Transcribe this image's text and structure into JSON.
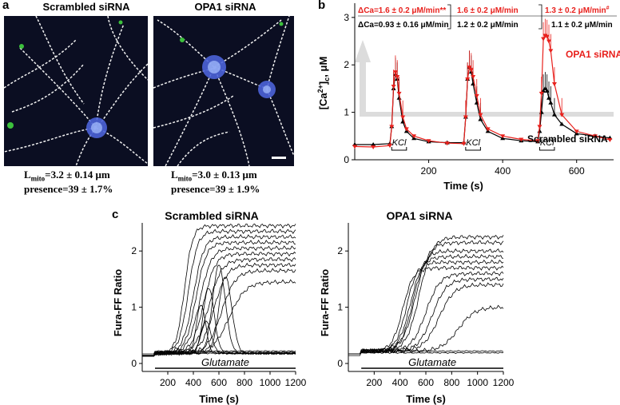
{
  "panel_a": {
    "letter": "a",
    "left_title": "Scrambled siRNA",
    "right_title": "OPA1 siRNA",
    "left_caption": [
      "L",
      "mito",
      "=3.2 ± 0.14 μm"
    ],
    "left_presence": "presence=39 ± 1.7%",
    "right_caption": [
      "L",
      "mito",
      "=3.0 ± 0.13 μm"
    ],
    "right_presence": "presence=39 ± 1.9%",
    "colors": {
      "background": "#0b0e22",
      "mito": "#f2f2f2",
      "nucleus": "#4b63d8",
      "green": "#3cc13c"
    }
  },
  "panel_b": {
    "letter": "b",
    "annot_red_1": "ΔCa=1.6 ± 0.2 μM/min**",
    "annot_red_2": "1.6 ± 0.2 μM/min",
    "annot_red_3": "1.3 ± 0.2 μM/min",
    "annot_red_3_sup": "#",
    "annot_black_1": "ΔCa=0.93 ± 0.16 μM/min",
    "annot_black_2": "1.2 ± 0.2 μM/min",
    "annot_black_3": "1.1 ± 0.2 μM/min",
    "series_red_label": "OPA1 siRNA",
    "series_black_label": "Scrambled siRNA",
    "kcl_label": "KCl",
    "colors": {
      "red": "#e8201c",
      "black": "#000000"
    }
  },
  "panel_c": {
    "letter": "c",
    "left_title": "Scrambled siRNA",
    "right_title": "OPA1 siRNA",
    "bar_label": "Glutamate"
  },
  "chart_data": [
    {
      "type": "line",
      "panel": "b",
      "xlabel": "Time (s)",
      "ylabel": "[Ca2+]c, μM",
      "ylabel_parts": [
        "[Ca",
        "2+",
        "]",
        "c",
        ", μM"
      ],
      "xlim": [
        0,
        700
      ],
      "ylim": [
        0,
        3.3
      ],
      "xticks": [
        200,
        400,
        600
      ],
      "yticks": [
        0,
        1,
        2,
        3
      ],
      "stimuli": [
        {
          "label": "KCl",
          "start": 100,
          "end": 140
        },
        {
          "label": "KCl",
          "start": 300,
          "end": 340
        },
        {
          "label": "KCl",
          "start": 500,
          "end": 540
        }
      ],
      "series": [
        {
          "name": "Scrambled siRNA",
          "color": "#000000",
          "x": [
            0,
            50,
            95,
            100,
            105,
            110,
            115,
            120,
            130,
            140,
            160,
            200,
            250,
            295,
            300,
            305,
            310,
            315,
            320,
            330,
            340,
            360,
            400,
            450,
            495,
            500,
            505,
            510,
            515,
            520,
            525,
            530,
            540,
            560,
            600,
            650,
            690
          ],
          "y": [
            0.32,
            0.32,
            0.34,
            0.7,
            1.5,
            1.8,
            1.7,
            1.3,
            0.8,
            0.6,
            0.45,
            0.38,
            0.36,
            0.36,
            0.9,
            1.7,
            1.95,
            1.85,
            1.6,
            1.2,
            0.85,
            0.6,
            0.45,
            0.4,
            0.38,
            0.6,
            1.0,
            1.45,
            1.5,
            1.45,
            1.3,
            1.2,
            0.95,
            0.75,
            0.55,
            0.5,
            0.46
          ]
        },
        {
          "name": "OPA1 siRNA",
          "color": "#e8201c",
          "x": [
            0,
            50,
            95,
            100,
            105,
            110,
            115,
            120,
            130,
            140,
            160,
            200,
            250,
            295,
            300,
            305,
            310,
            315,
            320,
            330,
            340,
            360,
            400,
            450,
            495,
            500,
            505,
            510,
            515,
            520,
            525,
            530,
            540,
            560,
            600,
            650,
            690
          ],
          "y": [
            0.28,
            0.27,
            0.3,
            0.7,
            1.55,
            1.85,
            1.75,
            1.4,
            0.9,
            0.65,
            0.5,
            0.4,
            0.35,
            0.34,
            0.9,
            1.7,
            1.95,
            1.9,
            1.75,
            1.35,
            0.95,
            0.65,
            0.5,
            0.43,
            0.4,
            0.7,
            1.4,
            2.55,
            2.62,
            2.6,
            2.5,
            2.3,
            1.6,
            0.95,
            0.6,
            0.5,
            0.42
          ]
        }
      ]
    },
    {
      "type": "line",
      "panel": "c-left",
      "title": "Scrambled siRNA",
      "xlabel": "Time (s)",
      "ylabel": "Fura-FF Ratio",
      "xlim": [
        0,
        1200
      ],
      "ylim": [
        0,
        2.5
      ],
      "xticks": [
        200,
        400,
        600,
        800,
        1000,
        1200
      ],
      "yticks": [
        0,
        1,
        2
      ],
      "stimulus": {
        "label": "Glutamate",
        "start": 100,
        "end": 1200
      },
      "traces": [
        {
          "type": "sigmoid",
          "base": 0.18,
          "plateau": 2.45,
          "t0": 330,
          "k": 70
        },
        {
          "type": "sigmoid",
          "base": 0.18,
          "plateau": 2.35,
          "t0": 360,
          "k": 80
        },
        {
          "type": "sigmoid",
          "base": 0.18,
          "plateau": 2.25,
          "t0": 400,
          "k": 90
        },
        {
          "type": "sigmoid",
          "base": 0.18,
          "plateau": 2.15,
          "t0": 420,
          "k": 90
        },
        {
          "type": "sigmoid",
          "base": 0.18,
          "plateau": 2.05,
          "t0": 450,
          "k": 100
        },
        {
          "type": "sigmoid",
          "base": 0.18,
          "plateau": 1.95,
          "t0": 480,
          "k": 100
        },
        {
          "type": "sigmoid",
          "base": 0.18,
          "plateau": 1.85,
          "t0": 520,
          "k": 110
        },
        {
          "type": "sigmoid",
          "base": 0.18,
          "plateau": 1.75,
          "t0": 560,
          "k": 110
        },
        {
          "type": "sigmoid",
          "base": 0.18,
          "plateau": 1.65,
          "t0": 620,
          "k": 120
        },
        {
          "type": "sigmoid",
          "base": 0.18,
          "plateau": 1.45,
          "t0": 680,
          "k": 140
        },
        {
          "type": "transient",
          "base": 0.18,
          "peak": 1.75,
          "t0": 600,
          "width": 70
        },
        {
          "type": "transient",
          "base": 0.18,
          "peak": 1.55,
          "t0": 650,
          "width": 70
        },
        {
          "type": "transient",
          "base": 0.18,
          "peak": 1.35,
          "t0": 520,
          "width": 60
        },
        {
          "type": "transient",
          "base": 0.18,
          "peak": 1.05,
          "t0": 460,
          "width": 50
        },
        {
          "type": "transient",
          "base": 0.18,
          "peak": 0.75,
          "t0": 500,
          "width": 55
        },
        {
          "type": "flat",
          "base": 0.22
        },
        {
          "type": "flat",
          "base": 0.2
        },
        {
          "type": "flat",
          "base": 0.18
        }
      ]
    },
    {
      "type": "line",
      "panel": "c-right",
      "title": "OPA1 siRNA",
      "xlabel": "Time (s)",
      "ylabel": "Fura-FF Ratio",
      "xlim": [
        0,
        1200
      ],
      "ylim": [
        0,
        2.5
      ],
      "xticks": [
        200,
        400,
        600,
        800,
        1000,
        1200
      ],
      "yticks": [
        0,
        1,
        2
      ],
      "stimulus": {
        "label": "Glutamate",
        "start": 100,
        "end": 1200
      },
      "traces": [
        {
          "type": "sigmoid",
          "base": 0.22,
          "plateau": 2.25,
          "t0": 550,
          "k": 110
        },
        {
          "type": "sigmoid",
          "base": 0.22,
          "plateau": 2.15,
          "t0": 520,
          "k": 110
        },
        {
          "type": "sigmoid",
          "base": 0.22,
          "plateau": 2.0,
          "t0": 500,
          "k": 100
        },
        {
          "type": "sigmoid",
          "base": 0.22,
          "plateau": 1.9,
          "t0": 480,
          "k": 100
        },
        {
          "type": "sigmoid",
          "base": 0.22,
          "plateau": 1.8,
          "t0": 450,
          "k": 90
        },
        {
          "type": "sigmoid",
          "base": 0.22,
          "plateau": 1.7,
          "t0": 420,
          "k": 90
        },
        {
          "type": "sigmoid",
          "base": 0.22,
          "plateau": 1.6,
          "t0": 600,
          "k": 120
        },
        {
          "type": "sigmoid",
          "base": 0.22,
          "plateau": 1.5,
          "t0": 650,
          "k": 120
        },
        {
          "type": "sigmoid",
          "base": 0.22,
          "plateau": 1.4,
          "t0": 700,
          "k": 130
        },
        {
          "type": "sigmoid",
          "base": 0.22,
          "plateau": 1.0,
          "t0": 850,
          "k": 140
        },
        {
          "type": "flat",
          "base": 0.22
        },
        {
          "type": "flat",
          "base": 0.19
        }
      ]
    }
  ]
}
